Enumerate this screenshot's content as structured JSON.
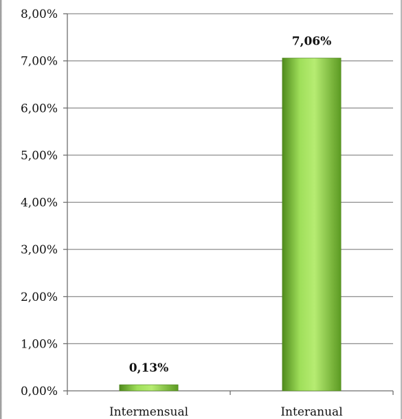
{
  "chart_data": {
    "type": "bar",
    "categories": [
      "Intermensual",
      "Interanual"
    ],
    "values": [
      0.13,
      7.06
    ],
    "data_labels": [
      "0,13%",
      "7,06%"
    ],
    "ylim": [
      0,
      8
    ],
    "y_ticks": [
      0,
      1,
      2,
      3,
      4,
      5,
      6,
      7,
      8
    ],
    "y_tick_labels": [
      "0,00%",
      "1,00%",
      "2,00%",
      "3,00%",
      "4,00%",
      "5,00%",
      "6,00%",
      "7,00%",
      "8,00%"
    ],
    "grid": true,
    "legend": "none",
    "title": "",
    "xlabel": "",
    "ylabel": "",
    "bar_color": "#8ed14a"
  }
}
